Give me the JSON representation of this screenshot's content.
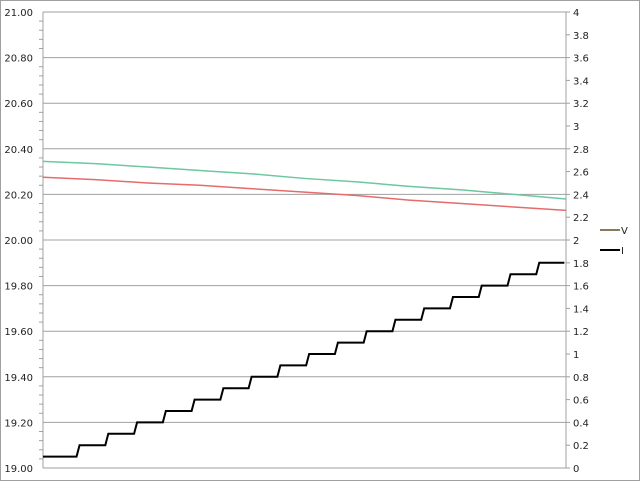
{
  "chart_data": {
    "type": "line",
    "title": "",
    "xlabel": "",
    "ylabel": "",
    "y2label": "",
    "grid": true,
    "legend_position": "right",
    "xlim": [
      0,
      100
    ],
    "ylim": [
      19.0,
      21.0
    ],
    "y2lim": [
      0,
      4
    ],
    "yticks": [
      "19.00",
      "19.20",
      "19.40",
      "19.60",
      "19.80",
      "20.00",
      "20.20",
      "20.40",
      "20.60",
      "20.80",
      "21.00"
    ],
    "y2ticks": [
      "0",
      "0.2",
      "0.4",
      "0.6",
      "0.8",
      "1",
      "1.2",
      "1.4",
      "1.6",
      "1.8",
      "2",
      "2.2",
      "2.4",
      "2.6",
      "2.8",
      "3",
      "3.2",
      "3.4",
      "3.6",
      "3.8",
      "4"
    ],
    "series": [
      {
        "color": "#6dc7a0",
        "axis": "left",
        "step": false,
        "x": [
          0,
          10,
          20,
          30,
          40,
          50,
          60,
          70,
          80,
          90,
          100
        ],
        "values": [
          20.345,
          20.335,
          20.32,
          20.305,
          20.29,
          20.27,
          20.255,
          20.235,
          20.22,
          20.2,
          20.18
        ]
      },
      {
        "color": "#e66b6b",
        "axis": "left",
        "step": false,
        "x": [
          0,
          10,
          20,
          30,
          40,
          50,
          60,
          70,
          80,
          90,
          100
        ],
        "values": [
          20.275,
          20.265,
          20.25,
          20.24,
          20.225,
          20.21,
          20.195,
          20.175,
          20.16,
          20.145,
          20.13
        ]
      },
      {
        "name": "V",
        "color": "#8b7a5a",
        "axis": "left",
        "legend_only": true,
        "x": [],
        "values": []
      },
      {
        "name": "I",
        "color": "#000000",
        "axis": "right",
        "step": true,
        "x": [
          0,
          6.7,
          12.2,
          17.7,
          23.2,
          28.7,
          34.2,
          39.6,
          45.1,
          50.6,
          56.1,
          61.6,
          67.1,
          72.6,
          78.1,
          83.6,
          89.1,
          94.6,
          99.4
        ],
        "values": [
          0.1,
          0.2,
          0.3,
          0.4,
          0.5,
          0.6,
          0.7,
          0.8,
          0.9,
          1.0,
          1.1,
          1.2,
          1.3,
          1.4,
          1.5,
          1.6,
          1.7,
          1.8,
          1.8
        ]
      }
    ]
  }
}
